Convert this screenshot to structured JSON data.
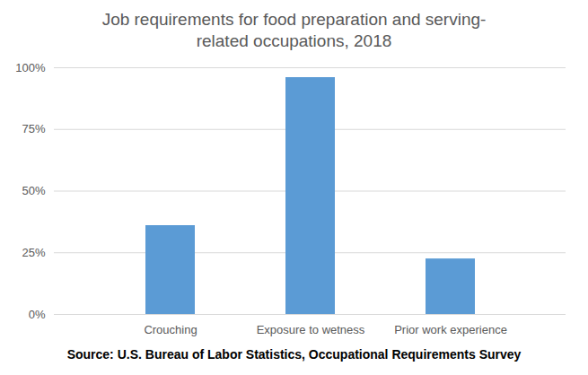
{
  "chart_data": {
    "type": "bar",
    "title": "Job requirements for food preparation and serving-related occupations, 2018",
    "caption": "Source: U.S. Bureau of Labor Statistics, Occupational Requirements Survey",
    "categories": [
      "Crouching",
      "Exposure to wetness",
      "Prior work experience"
    ],
    "values": [
      36,
      96,
      22.5
    ],
    "color": "#5b9bd5",
    "ylim": [
      0,
      100
    ],
    "yticks": [
      {
        "value": 0,
        "label": "0%"
      },
      {
        "value": 25,
        "label": "25%"
      },
      {
        "value": 50,
        "label": "50%"
      },
      {
        "value": 75,
        "label": "75%"
      },
      {
        "value": 100,
        "label": "100%"
      }
    ],
    "grid": true
  }
}
